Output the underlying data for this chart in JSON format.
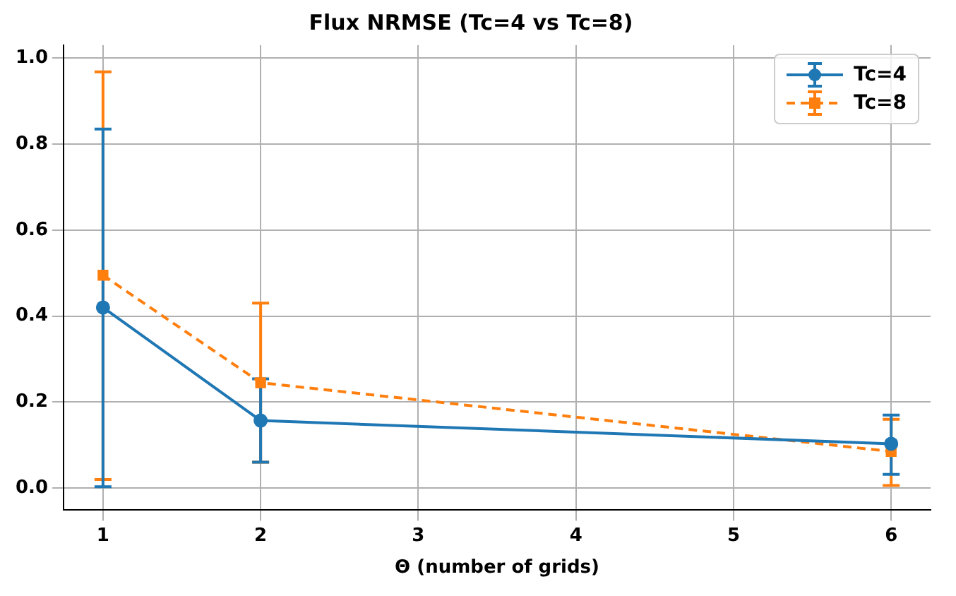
{
  "chart_data": {
    "type": "line",
    "title": "Flux NRMSE (Tc=4 vs Tc=8)",
    "xlabel": "Θ (number of grids)",
    "x": [
      1,
      2,
      6
    ],
    "series": [
      {
        "name": "Tc=4",
        "color": "#1f77b4",
        "values": [
          0.42,
          0.157,
          0.103
        ],
        "errors": [
          [
            0.003,
            0.835
          ],
          [
            0.06,
            0.254
          ],
          [
            0.032,
            0.17
          ]
        ],
        "marker": "circle",
        "line_style": "solid"
      },
      {
        "name": "Tc=8",
        "color": "#ff7f0e",
        "values": [
          0.495,
          0.245,
          0.085
        ],
        "errors": [
          [
            0.02,
            0.968
          ],
          [
            0.06,
            0.43
          ],
          [
            0.006,
            0.16
          ]
        ],
        "marker": "square",
        "line_style": "dashed"
      }
    ],
    "xlim": [
      0.75,
      6.25
    ],
    "xticks": [
      1,
      2,
      3,
      4,
      5,
      6
    ],
    "ylim": [
      -0.05,
      1.03
    ],
    "yticks": [
      {
        "value": 0,
        "label": "0.0"
      },
      0.2,
      0.4,
      0.6,
      0.8,
      {
        "value": 1,
        "label": "1.0"
      }
    ],
    "grid": true,
    "legend": "top right"
  }
}
